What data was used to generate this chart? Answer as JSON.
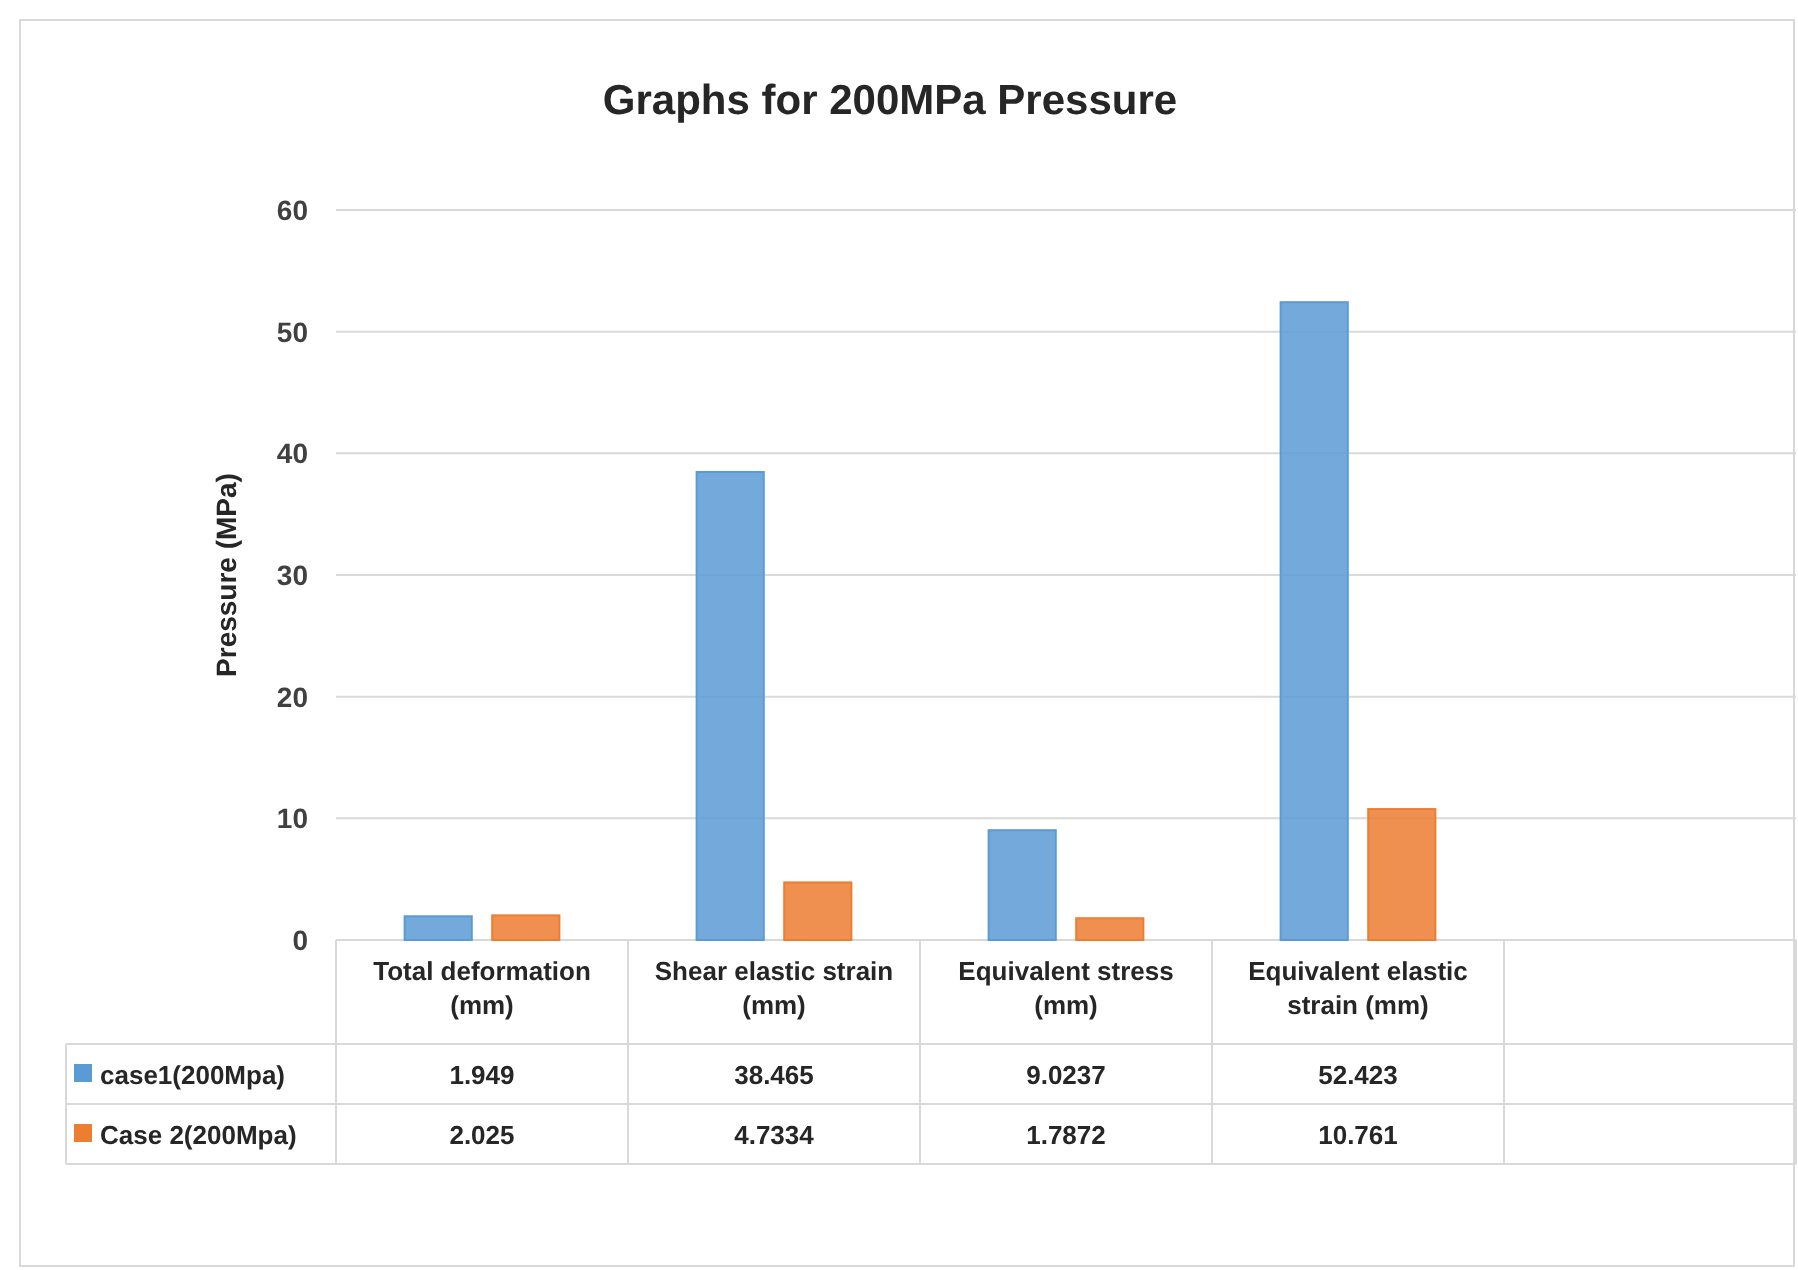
{
  "chart_data": {
    "type": "bar",
    "title": "Graphs for 200MPa Pressure",
    "ylabel": "Pressure (MPa)",
    "categories": [
      "Total deformation (mm)",
      "Shear elastic strain (mm)",
      "Equivalent stress (mm)",
      "Equivalent elastic strain (mm)",
      null
    ],
    "series": [
      {
        "name": "case1(200Mpa)",
        "color": "#5b9bd5",
        "values": [
          1.949,
          38.465,
          9.0237,
          52.423,
          null
        ]
      },
      {
        "name": "Case 2(200Mpa)",
        "color": "#ed7d31",
        "values": [
          2.025,
          4.7334,
          1.7872,
          10.761,
          null
        ]
      }
    ],
    "ylim": [
      0,
      60
    ],
    "yticks": [
      0,
      10,
      20,
      30,
      40,
      50,
      60
    ],
    "grid": "y",
    "legend": "bottom",
    "data_labels": true
  }
}
